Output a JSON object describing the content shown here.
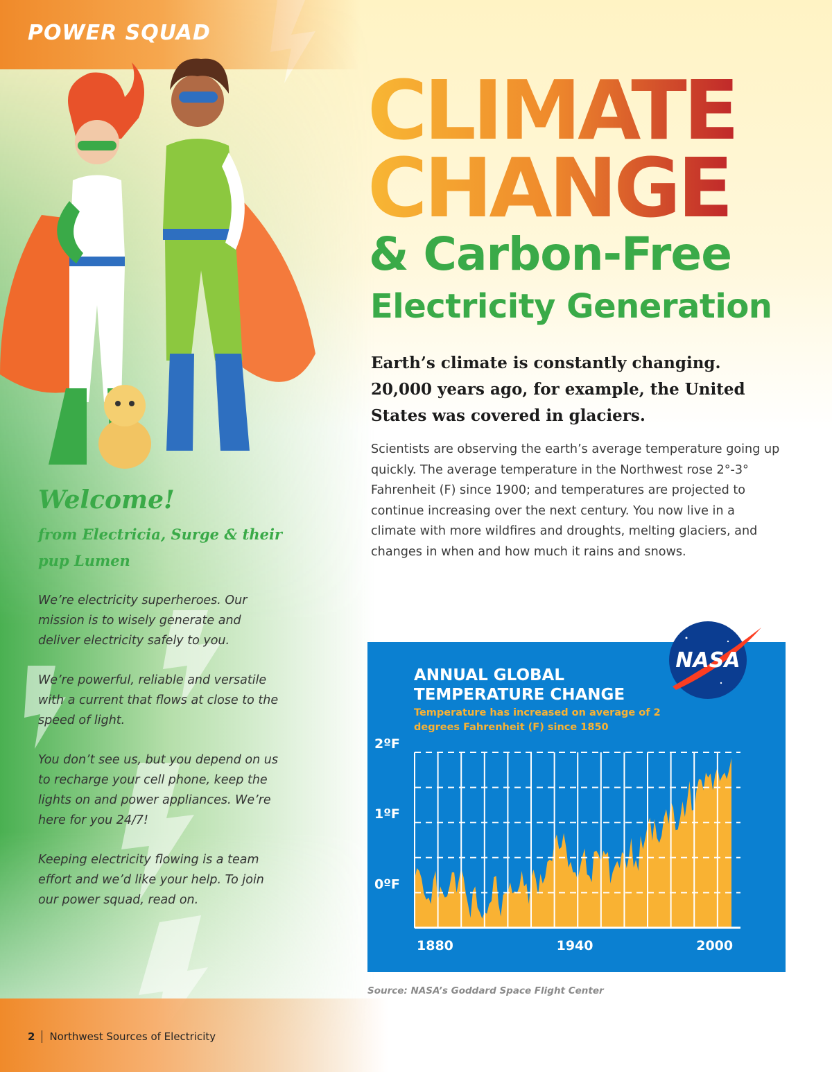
{
  "header": {
    "section": "POWER SQUAD"
  },
  "title": {
    "line1": "CLIMATE",
    "line2": "CHANGE",
    "line3": "& Carbon-Free",
    "line4": "Electricity Generation"
  },
  "intro": "Earth’s climate is constantly changing. 20,000 years ago, for example, the United States was covered in glaciers.",
  "body": "Scientists are observing the earth’s average temperature going up quickly. The average temperature in the Northwest rose 2°-3° Fahrenheit (F) since 1900; and temperatures are projected to continue increasing over the next century. You now live in a climate with more wildfires and droughts, melting glaciers, and changes in when and how much it rains and snows.",
  "welcome": {
    "heading": "Welcome!",
    "subheading": "from Electricia, Surge & their pup Lumen",
    "paragraphs": [
      "We’re electricity superheroes. Our mission is to wisely generate and deliver electricity safely to you.",
      "We’re powerful, reliable and versatile with a current that flows at close to the speed of light.",
      "You don’t see us, but you depend on us to recharge your cell phone, keep the lights on and power appliances. We’re here for you 24/7!",
      "Keeping electricity flowing is a team effort and we’d like your help. To join our power squad, read on."
    ]
  },
  "footer": {
    "page": "2",
    "publication": "Northwest Sources of Electricity"
  },
  "chart_data": {
    "type": "area",
    "title": "ANNUAL GLOBAL TEMPERATURE CHANGE",
    "subtitle": "Temperature has increased on average of 2 degrees Fahrenheit (F) since 1850",
    "logo": "NASA",
    "source": "Source: NASA’s Goddard Space Flight Center",
    "color": "#f9b233",
    "background": "#0b80d1",
    "grid": true,
    "xlim": [
      1880,
      2016
    ],
    "ylim": [
      -0.5,
      2
    ],
    "yticks": [
      {
        "value": 2,
        "label": "2ºF"
      },
      {
        "value": 1.5,
        "label": null
      },
      {
        "value": 1,
        "label": "1ºF"
      },
      {
        "value": 0.5,
        "label": null
      },
      {
        "value": 0,
        "label": "0ºF"
      }
    ],
    "xticks": [
      {
        "value": 1880,
        "label": "1880"
      },
      {
        "value": 1890,
        "label": null
      },
      {
        "value": 1900,
        "label": null
      },
      {
        "value": 1910,
        "label": null
      },
      {
        "value": 1920,
        "label": null
      },
      {
        "value": 1930,
        "label": null
      },
      {
        "value": 1940,
        "label": "1940"
      },
      {
        "value": 1950,
        "label": null
      },
      {
        "value": 1960,
        "label": null
      },
      {
        "value": 1970,
        "label": null
      },
      {
        "value": 1980,
        "label": null
      },
      {
        "value": 1990,
        "label": null
      },
      {
        "value": 2000,
        "label": "2000"
      },
      {
        "value": 2010,
        "label": null
      }
    ],
    "x": [
      1880,
      1881,
      1882,
      1883,
      1884,
      1885,
      1886,
      1887,
      1888,
      1889,
      1890,
      1891,
      1892,
      1893,
      1894,
      1895,
      1896,
      1897,
      1898,
      1899,
      1900,
      1901,
      1902,
      1903,
      1904,
      1905,
      1906,
      1907,
      1908,
      1909,
      1910,
      1911,
      1912,
      1913,
      1914,
      1915,
      1916,
      1917,
      1918,
      1919,
      1920,
      1921,
      1922,
      1923,
      1924,
      1925,
      1926,
      1927,
      1928,
      1929,
      1930,
      1931,
      1932,
      1933,
      1934,
      1935,
      1936,
      1937,
      1938,
      1939,
      1940,
      1941,
      1942,
      1943,
      1944,
      1945,
      1946,
      1947,
      1948,
      1949,
      1950,
      1951,
      1952,
      1953,
      1954,
      1955,
      1956,
      1957,
      1958,
      1959,
      1960,
      1961,
      1962,
      1963,
      1964,
      1965,
      1966,
      1967,
      1968,
      1969,
      1970,
      1971,
      1972,
      1973,
      1974,
      1975,
      1976,
      1977,
      1978,
      1979,
      1980,
      1981,
      1982,
      1983,
      1984,
      1985,
      1986,
      1987,
      1988,
      1989,
      1990,
      1991,
      1992,
      1993,
      1994,
      1995,
      1996,
      1997,
      1998,
      1999,
      2000,
      2001,
      2002,
      2003,
      2004,
      2005,
      2006,
      2007,
      2008,
      2009,
      2010,
      2011,
      2012,
      2013,
      2014,
      2015,
      2016
    ],
    "values": [
      0.2,
      0.35,
      0.31,
      0.2,
      -0.01,
      -0.1,
      -0.07,
      -0.16,
      0.18,
      0.31,
      -0.14,
      0.09,
      0.0,
      -0.07,
      -0.05,
      0.09,
      0.29,
      0.29,
      0.0,
      0.18,
      0.35,
      0.22,
      -0.01,
      -0.18,
      -0.36,
      0.02,
      0.09,
      -0.21,
      -0.28,
      -0.37,
      -0.28,
      -0.3,
      -0.16,
      -0.12,
      0.22,
      0.24,
      -0.16,
      -0.34,
      -0.03,
      0.0,
      0.0,
      0.15,
      -0.01,
      0.02,
      0.0,
      0.09,
      0.31,
      0.09,
      0.13,
      -0.16,
      0.2,
      0.33,
      0.2,
      -0.03,
      0.27,
      0.13,
      0.22,
      0.44,
      0.47,
      0.45,
      0.72,
      0.83,
      0.62,
      0.65,
      0.85,
      0.65,
      0.36,
      0.44,
      0.29,
      0.29,
      0.18,
      0.36,
      0.51,
      0.63,
      0.26,
      0.24,
      0.15,
      0.58,
      0.6,
      0.54,
      0.44,
      0.6,
      0.54,
      0.58,
      0.13,
      0.29,
      0.38,
      0.45,
      0.35,
      0.58,
      0.54,
      0.35,
      0.51,
      0.78,
      0.36,
      0.47,
      0.31,
      0.81,
      0.62,
      0.78,
      0.96,
      1.07,
      0.74,
      1.05,
      0.78,
      0.71,
      0.81,
      1.07,
      1.19,
      0.98,
      1.3,
      1.21,
      0.89,
      0.9,
      1.07,
      1.3,
      1.08,
      1.32,
      1.59,
      1.17,
      1.19,
      1.46,
      1.62,
      1.61,
      1.46,
      1.71,
      1.64,
      1.7,
      1.46,
      1.68,
      1.79,
      1.59,
      1.66,
      1.71,
      1.62,
      1.75,
      1.92
    ]
  }
}
